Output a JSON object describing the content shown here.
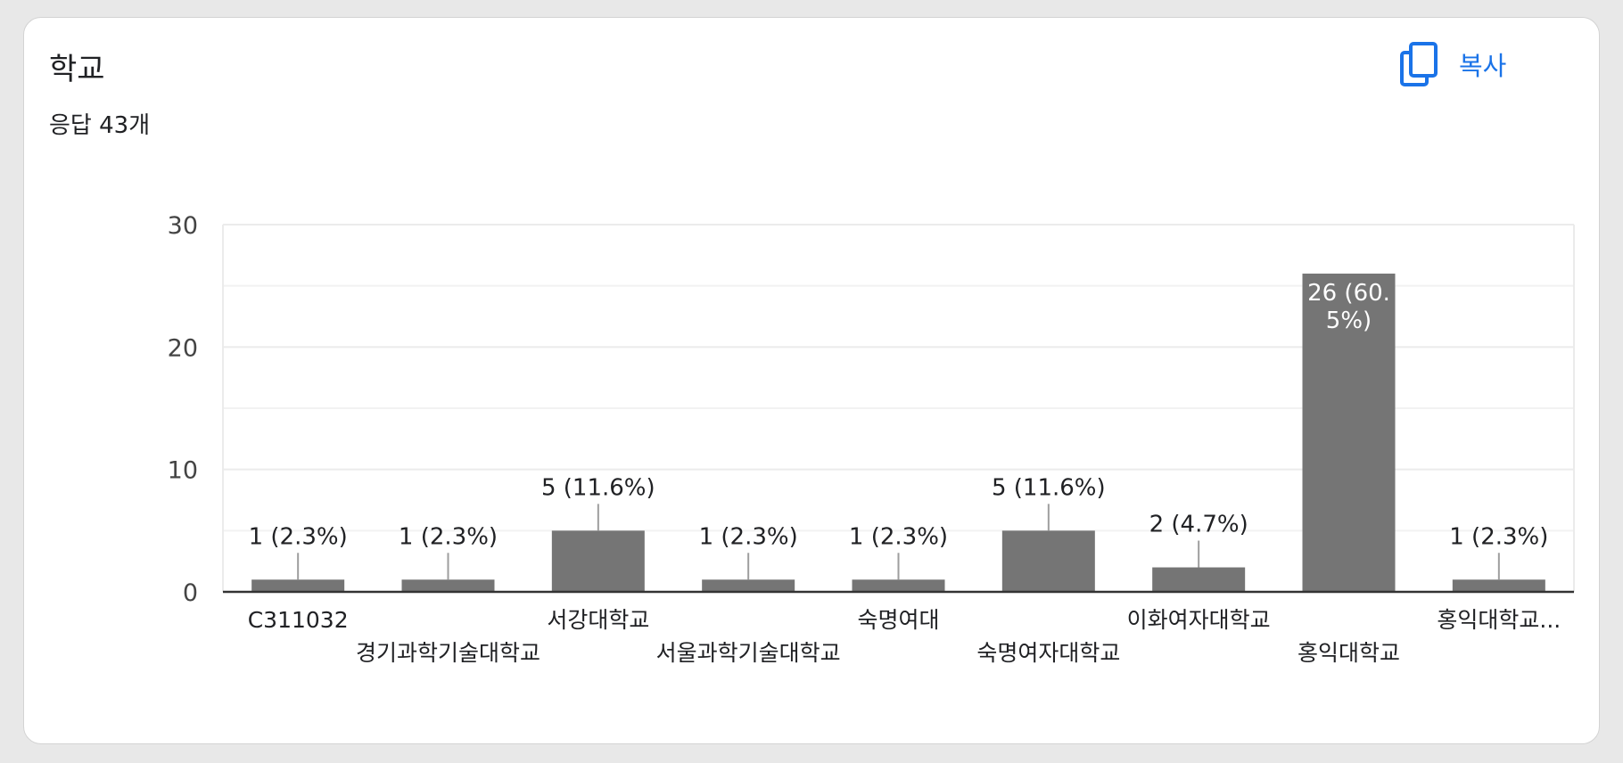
{
  "card": {
    "title": "학교",
    "response_count": "응답 43개",
    "copy_label": "복사",
    "copy_icon": "copy-icon"
  },
  "colors": {
    "bar": "#757575",
    "accent": "#1a73e8",
    "grid": "#ebebeb",
    "axis": "#333333"
  },
  "chart_data": {
    "type": "bar",
    "title": "",
    "xlabel": "",
    "ylabel": "",
    "ylim": [
      0,
      30
    ],
    "yticks": [
      0,
      10,
      20,
      30
    ],
    "grid": true,
    "categories": [
      "C311032",
      "경기과학기술대학교",
      "서강대학교",
      "서울과학기술대학교",
      "숙명여대",
      "숙명여자대학교",
      "이화여자대학교",
      "홍익대학교",
      "홍익대학교..."
    ],
    "values": [
      1,
      1,
      5,
      1,
      1,
      5,
      2,
      26,
      1
    ],
    "data_labels": [
      "1 (2.3%)",
      "1 (2.3%)",
      "5 (11.6%)",
      "1 (2.3%)",
      "1 (2.3%)",
      "5 (11.6%)",
      "2 (4.7%)",
      "26 (60.5%)",
      "1 (2.3%)"
    ]
  }
}
